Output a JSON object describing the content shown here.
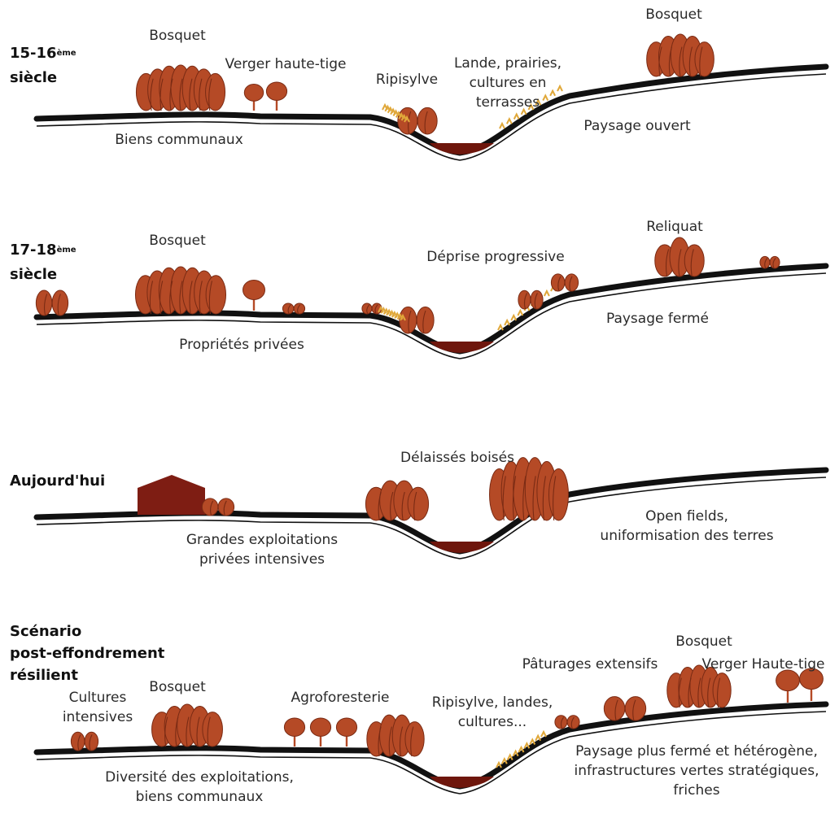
{
  "colors": {
    "ground": "#111111",
    "vegetation": "#b54a26",
    "vegetation_dark": "#7a2b14",
    "building": "#7e1d13",
    "water": "#6e160c",
    "shrub": "#e0a83a"
  },
  "panels": [
    {
      "title_main": "15-16",
      "title_sup": "ème",
      "title_line2": "siècle",
      "labels": {
        "bosquet_left": "Bosquet",
        "verger": "Verger haute-tige",
        "ripisylve": "Ripisylve",
        "lande_1": "Lande, prairies,",
        "lande_2": "cultures en",
        "lande_3": "terrasses",
        "bosquet_right": "Bosquet",
        "biens": "Biens communaux",
        "paysage": "Paysage ouvert"
      }
    },
    {
      "title_main": "17-18",
      "title_sup": "ème",
      "title_line2": "siècle",
      "labels": {
        "bosquet": "Bosquet",
        "deprise": "Déprise progressive",
        "reliquat": "Reliquat",
        "proprietes": "Propriétés privées",
        "paysage": "Paysage fermé"
      }
    },
    {
      "title": "Aujourd'hui",
      "labels": {
        "delaisses": "Délaissés boisés",
        "grandes_1": "Grandes exploitations",
        "grandes_2": "privées intensives",
        "open_1": "Open fields,",
        "open_2": "uniformisation des terres"
      }
    },
    {
      "title_line1": "Scénario",
      "title_line2": "post-effondrement",
      "title_line3": "résilient",
      "labels": {
        "cultures_1": "Cultures",
        "cultures_2": "intensives",
        "bosquet_left": "Bosquet",
        "agroforesterie": "Agroforesterie",
        "ripisylve_1": "Ripisylve, landes,",
        "ripisylve_2": "cultures...",
        "paturages": "Pâturages extensifs",
        "bosquet_right": "Bosquet",
        "verger": "Verger Haute-tige",
        "diversite_1": "Diversité des exploitations,",
        "diversite_2": "biens communaux",
        "paysage_1": "Paysage plus fermé et hétérogène,",
        "paysage_2": "infrastructures vertes stratégiques,",
        "paysage_3": "friches"
      }
    }
  ]
}
